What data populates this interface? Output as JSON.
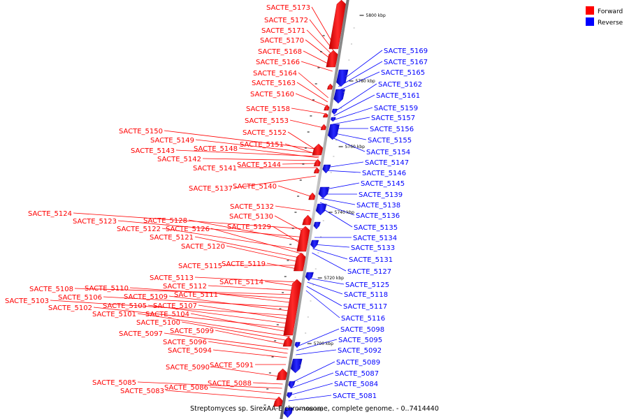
{
  "caption": "Streptomyces sp. SirexAA-E chromosome, complete genome. - 0..7414440",
  "legend": {
    "forward_label": "Forward",
    "reverse_label": "Reverse",
    "forward_color": "#ff0000",
    "reverse_color": "#0000ff"
  },
  "scale_ticks": [
    "5800 kbp",
    "5780 kbp",
    "5760 kbp",
    "5740 kbp",
    "5720 kbp",
    "5700 kbp",
    "5680 kbp"
  ],
  "forward_genes": [
    "SACTE_5173",
    "SACTE_5172",
    "SACTE_5171",
    "SACTE_5170",
    "SACTE_5168",
    "SACTE_5166",
    "SACTE_5164",
    "SACTE_5163",
    "SACTE_5160",
    "SACTE_5158",
    "SACTE_5153",
    "SACTE_5150",
    "SACTE_5152",
    "SACTE_5149",
    "SACTE_5151",
    "SACTE_5143",
    "SACTE_5148",
    "SACTE_5142",
    "SACTE_5144",
    "SACTE_5141",
    "SACTE_5137",
    "SACTE_5140",
    "SACTE_5132",
    "SACTE_5124",
    "SACTE_5130",
    "SACTE_5123",
    "SACTE_5128",
    "SACTE_5129",
    "SACTE_5122",
    "SACTE_5126",
    "SACTE_5121",
    "SACTE_5120",
    "SACTE_5119",
    "SACTE_5115",
    "SACTE_5113",
    "SACTE_5114",
    "SACTE_5112",
    "SACTE_5108",
    "SACTE_5110",
    "SACTE_5111",
    "SACTE_5106",
    "SACTE_5109",
    "SACTE_5103",
    "SACTE_5107",
    "SACTE_5105",
    "SACTE_5102",
    "SACTE_5104",
    "SACTE_5101",
    "SACTE_5100",
    "SACTE_5099",
    "SACTE_5097",
    "SACTE_5096",
    "SACTE_5094",
    "SACTE_5091",
    "SACTE_5090",
    "SACTE_5088",
    "SACTE_5085",
    "SACTE_5086",
    "SACTE_5083"
  ],
  "reverse_genes": [
    "SACTE_5169",
    "SACTE_5167",
    "SACTE_5165",
    "SACTE_5162",
    "SACTE_5161",
    "SACTE_5159",
    "SACTE_5157",
    "SACTE_5156",
    "SACTE_5155",
    "SACTE_5154",
    "SACTE_5147",
    "SACTE_5146",
    "SACTE_5145",
    "SACTE_5139",
    "SACTE_5138",
    "SACTE_5136",
    "SACTE_5135",
    "SACTE_5134",
    "SACTE_5133",
    "SACTE_5131",
    "SACTE_5127",
    "SACTE_5125",
    "SACTE_5118",
    "SACTE_5117",
    "SACTE_5116",
    "SACTE_5098",
    "SACTE_5095",
    "SACTE_5092",
    "SACTE_5089",
    "SACTE_5087",
    "SACTE_5084",
    "SACTE_5081"
  ]
}
